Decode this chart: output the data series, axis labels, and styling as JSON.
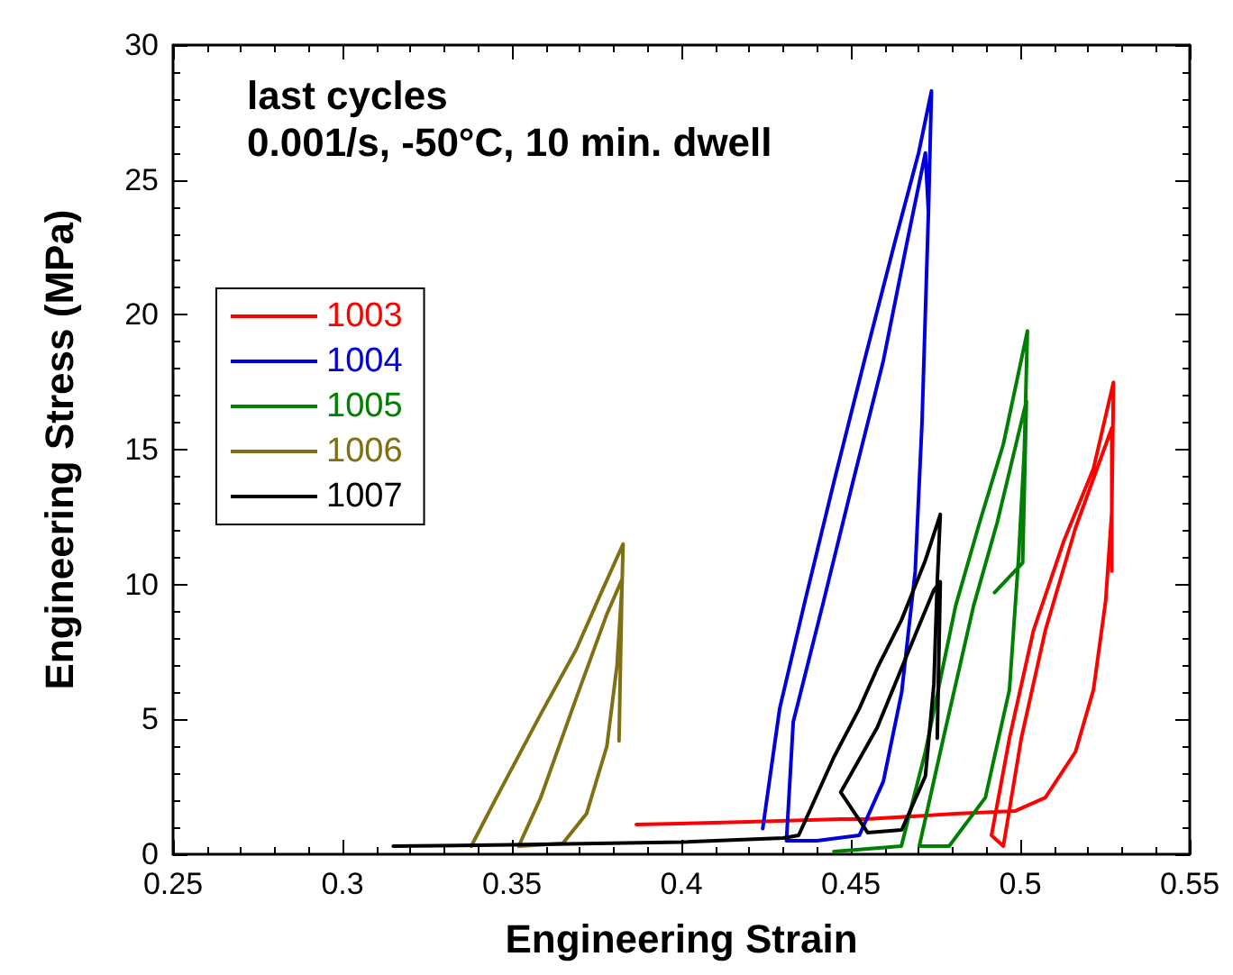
{
  "chart_data": {
    "type": "line",
    "title": "last cycles",
    "subtitle": "0.001/s, -50°C, 10 min. dwell",
    "xlabel": "Engineering Strain",
    "ylabel": "Engineering Stress (MPa)",
    "xlim": [
      0.25,
      0.55
    ],
    "xticks": [
      0.25,
      0.3,
      0.35,
      0.4,
      0.45,
      0.5,
      0.55
    ],
    "ylim": [
      0,
      30
    ],
    "yticks": [
      0,
      5,
      10,
      15,
      20,
      25,
      30
    ],
    "grid": false,
    "legend": "top left",
    "marker": "none",
    "line_style": "solid",
    "series": [
      {
        "name": "1003",
        "color": "#ff0000",
        "x": [
          0.3867,
          0.42,
          0.447,
          0.4543,
          0.4809,
          0.4984,
          0.5074,
          0.5163,
          0.5216,
          0.5252,
          0.527,
          0.5275,
          0.5216,
          0.5128,
          0.5039,
          0.4968,
          0.4915,
          0.495,
          0.5003,
          0.5074,
          0.5163,
          0.527,
          0.527
        ],
        "values": [
          1.1,
          1.2,
          1.3,
          1.3,
          1.5,
          1.6,
          2.1,
          3.8,
          6.1,
          9.4,
          12.7,
          17.5,
          14.3,
          11.6,
          8.3,
          4.3,
          0.7,
          0.3,
          4.3,
          8.3,
          12.1,
          15.8,
          10.5
        ]
      },
      {
        "name": "1004",
        "color": "#0000dd",
        "x": [
          0.424,
          0.429,
          0.4365,
          0.445,
          0.454,
          0.463,
          0.47,
          0.4738,
          0.4729,
          0.471,
          0.469,
          0.465,
          0.4596,
          0.4525,
          0.44,
          0.431,
          0.433,
          0.442,
          0.4506,
          0.4596,
          0.4666,
          0.472,
          0.4729
        ],
        "values": [
          0.95,
          5.4,
          9.4,
          13.8,
          18.3,
          22.7,
          26,
          28.3,
          23.8,
          16,
          10.5,
          6,
          2.7,
          0.7,
          0.5,
          0.5,
          4.9,
          9.4,
          13.8,
          18.3,
          22.7,
          26,
          23.8
        ]
      },
      {
        "name": "1005",
        "color": "#008000",
        "x": [
          0.445,
          0.455,
          0.4649,
          0.472,
          0.4809,
          0.488,
          0.495,
          0.5021,
          0.5012,
          0.4995,
          0.4968,
          0.4897,
          0.479,
          0.4702,
          0.4773,
          0.4862,
          0.4932,
          0.5018,
          0.5007,
          0.4924
        ],
        "values": [
          0.1,
          0.2,
          0.3,
          3.8,
          9.2,
          12.3,
          15.2,
          19.4,
          15,
          11,
          6.1,
          2.1,
          0.3,
          0.3,
          4.3,
          9.2,
          12.3,
          16.8,
          10.8,
          9.7
        ]
      },
      {
        "name": "1006",
        "color": "#807014",
        "x": [
          0.338,
          0.345,
          0.3585,
          0.369,
          0.376,
          0.3828,
          0.3825,
          0.381,
          0.378,
          0.372,
          0.365,
          0.352,
          0.3585,
          0.369,
          0.378,
          0.3825,
          0.3816
        ],
        "values": [
          0.3,
          2,
          5.2,
          7.6,
          9.6,
          11.5,
          10,
          7,
          4,
          1.5,
          0.4,
          0.3,
          2.1,
          5.8,
          8.9,
          10.2,
          4.2
        ]
      },
      {
        "name": "1007",
        "color": "#000000",
        "x": [
          0.315,
          0.35,
          0.4,
          0.43,
          0.4346,
          0.445,
          0.4525,
          0.4578,
          0.465,
          0.472,
          0.4764,
          0.4755,
          0.4745,
          0.472,
          0.465,
          0.455,
          0.447,
          0.4578,
          0.4666,
          0.4745,
          0.4764,
          0.4755
        ],
        "values": [
          0.3,
          0.35,
          0.45,
          0.6,
          0.7,
          3.6,
          5.4,
          6.9,
          8.7,
          10.9,
          12.6,
          10.1,
          6.3,
          2.9,
          0.9,
          0.8,
          2.3,
          4.7,
          7.4,
          9.8,
          10.1,
          4.3
        ]
      }
    ]
  }
}
